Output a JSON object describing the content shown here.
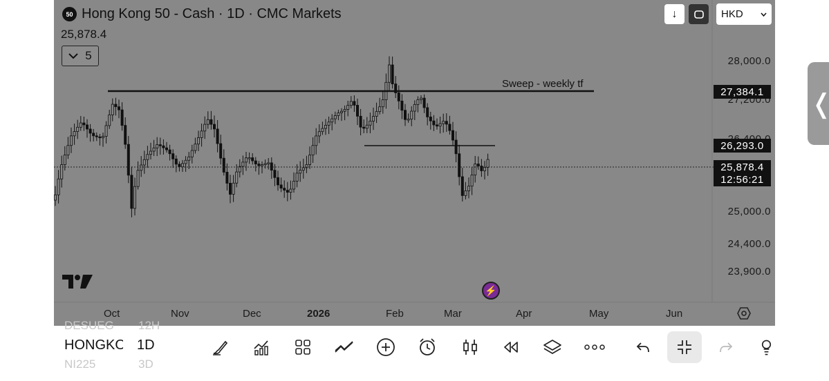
{
  "symbol": {
    "badge": "50",
    "title": "Hong Kong 50 - Cash · 1D · CMC Markets",
    "last_price": "25,878.4"
  },
  "indicators_toggle": {
    "count": "5"
  },
  "toolbar": {
    "currency": "HKD"
  },
  "price_axis": {
    "labels": [
      "28,000.0",
      "27,200.0",
      "26,400.0",
      "25,000.0",
      "24,400.0",
      "23,900.0"
    ],
    "tags": {
      "sweep_level": "27,384.1",
      "resistance_level": "26,293.0",
      "current_price": "25,878.4",
      "countdown": "12:56:21"
    }
  },
  "time_axis": {
    "labels": [
      "Oct",
      "Nov",
      "Dec",
      "2026",
      "Feb",
      "Mar",
      "Apr",
      "May",
      "Jun"
    ]
  },
  "annotations": {
    "sweep_label": "Sweep - weekly tf"
  },
  "bottom_bar": {
    "symbol": "HONGKONG",
    "interval": "1D",
    "ghost_above": [
      "DESUEG",
      "12H"
    ],
    "ghost_below": [
      "NI225",
      "3D"
    ],
    "tools": [
      "brush-icon",
      "indicators-icon",
      "layout-icon",
      "line-tools-icon",
      "add-icon",
      "alarm-icon",
      "candles-icon",
      "replay-icon",
      "layers-icon",
      "more-icon",
      "undo-icon",
      "collapse-icon",
      "redo-icon",
      "object-tree-icon"
    ]
  },
  "colors": {
    "chart_background": "#888888",
    "candle": "#111111",
    "alert_icon": "#7b2b95",
    "tag_background": "#111111"
  }
}
